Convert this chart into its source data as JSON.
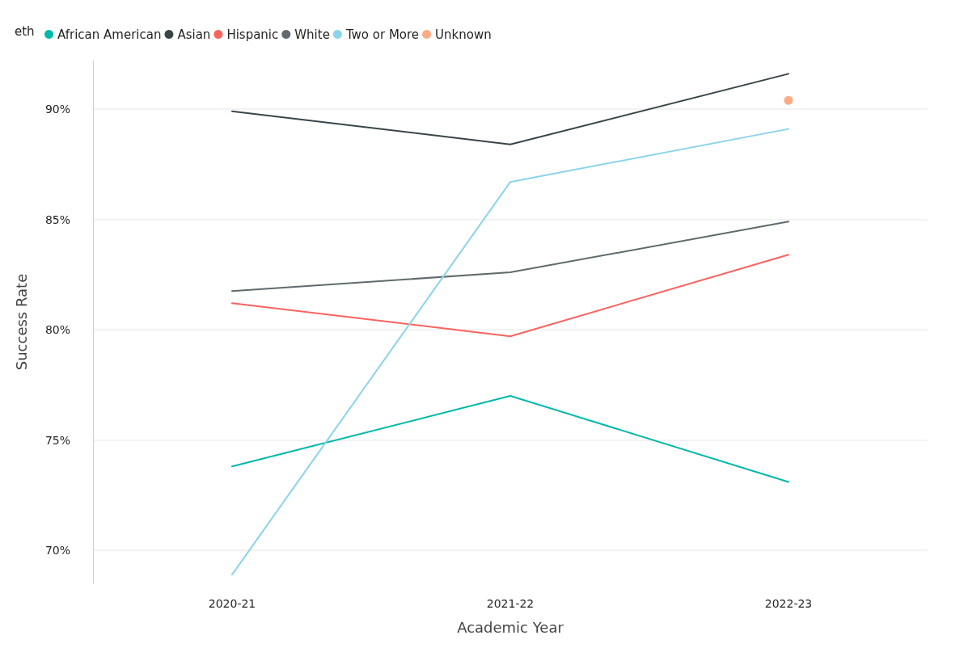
{
  "chart_data": {
    "type": "line",
    "xlabel": "Academic Year",
    "ylabel": "Success Rate",
    "legend_title": "eth",
    "categories": [
      "2020-21",
      "2021-22",
      "2022-23"
    ],
    "series": [
      {
        "name": "African American",
        "color": "#01b8aa",
        "values": [
          73.8,
          77.0,
          73.1
        ]
      },
      {
        "name": "Asian",
        "color": "#374649",
        "values": [
          89.9,
          88.4,
          91.6
        ]
      },
      {
        "name": "Hispanic",
        "color": "#fd625e",
        "values": [
          81.2,
          79.7,
          83.4
        ]
      },
      {
        "name": "White",
        "color": "#5f6b6d",
        "values": [
          81.75,
          82.6,
          84.9
        ]
      },
      {
        "name": "Two or More",
        "color": "#8ad4eb",
        "values": [
          68.9,
          86.7,
          89.1
        ]
      },
      {
        "name": "Unknown",
        "color": "#fe9666",
        "type": "scatter",
        "marker": "circle",
        "values": [
          null,
          null,
          90.4
        ]
      }
    ],
    "ylim": [
      68.5,
      92.2
    ],
    "yticks": [
      {
        "value": 70,
        "label": "70%"
      },
      {
        "value": 75,
        "label": "75%"
      },
      {
        "value": 80,
        "label": "80%"
      },
      {
        "value": 85,
        "label": "85%"
      },
      {
        "value": 90,
        "label": "90%"
      }
    ],
    "grid": "y",
    "legend": "top left",
    "line_style": "solid"
  }
}
